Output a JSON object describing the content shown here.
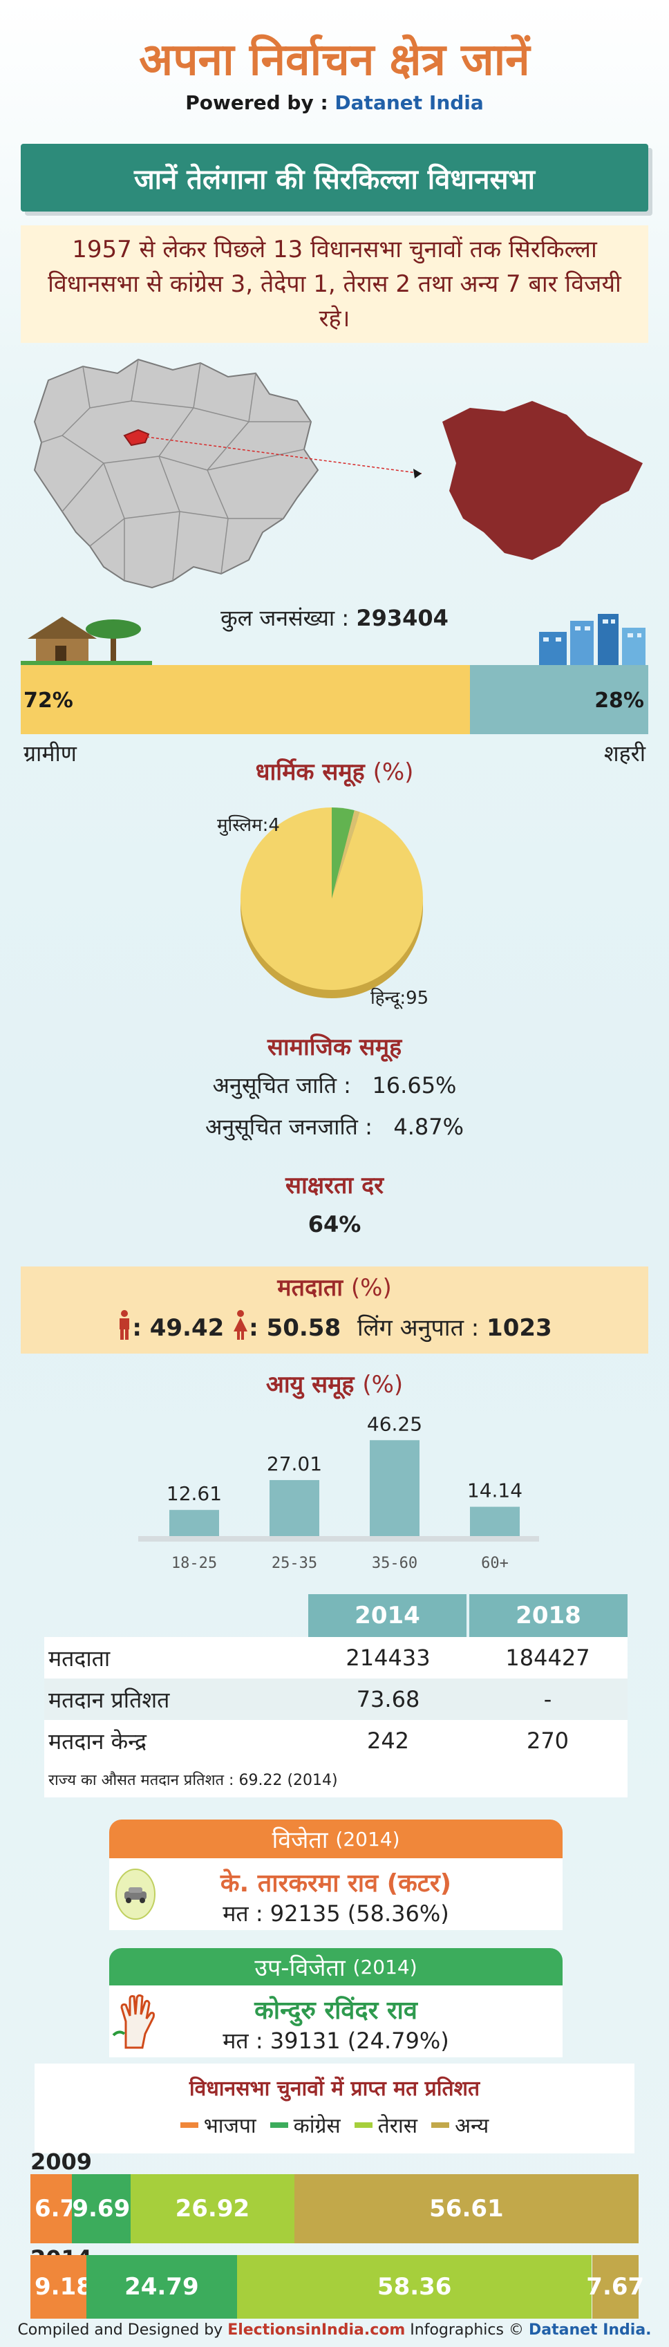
{
  "header": {
    "title": "अपना निर्वाचन क्षेत्र जानें",
    "powered_prefix": "Powered by : ",
    "powered_brand": "Datanet India"
  },
  "banner": {
    "text": "जानें तेलंगाना की सिरकिल्ला विधानसभा"
  },
  "intro": {
    "text": "1957 से लेकर पिछले 13 विधानसभा चुनावों तक सिरकिल्ला विधानसभा से कांग्रेस 3, तेदेपा 1, तेरास 2 तथा अन्य 7 बार विजयी रहे।"
  },
  "population": {
    "label": "कुल जनसंख्या : ",
    "value": "293404",
    "rural_pct": "72%",
    "urban_pct": "28%",
    "rural_label": "ग्रामीण",
    "urban_label": "शहरी"
  },
  "religion": {
    "title": "धार्मिक समूह",
    "unit": "(%)",
    "muslim_label": "मुस्लिम:4",
    "hindu_label": "हिन्दू:95",
    "chart_data": {
      "type": "pie",
      "categories": [
        "हिन्दू",
        "मुस्लिम",
        "अन्य"
      ],
      "values": [
        95,
        4,
        1
      ]
    }
  },
  "social": {
    "title": "सामाजिक समूह",
    "sc_label": "अनुसूचित जाति :",
    "sc_value": "16.65%",
    "st_label": "अनुसूचित जनजाति :",
    "st_value": "4.87%"
  },
  "literacy": {
    "title": "साक्षरता दर",
    "value": "64%"
  },
  "voters": {
    "title": "मतदाता",
    "unit": "(%)",
    "male": ": 49.42",
    "female": ": 50.58",
    "ratio_label": "लिंग अनुपात : ",
    "ratio_value": "1023"
  },
  "age": {
    "title": "आयु समूह",
    "unit": "(%)",
    "chart_data": {
      "type": "bar",
      "categories": [
        "18-25",
        "25-35",
        "35-60",
        "60+"
      ],
      "values": [
        12.61,
        27.01,
        46.25,
        14.14
      ],
      "ylim": [
        0,
        50
      ]
    }
  },
  "table": {
    "headers": [
      "2014",
      "2018"
    ],
    "rows": [
      {
        "label": "मतदाता",
        "v2014": "214433",
        "v2018": "184427"
      },
      {
        "label": "मतदान प्रतिशत",
        "v2014": "73.68",
        "v2018": "-"
      },
      {
        "label": "मतदान केन्द्र",
        "v2014": "242",
        "v2018": "270"
      }
    ],
    "note": "राज्य का औसत मतदान प्रतिशत : 69.22 (2014)"
  },
  "winner": {
    "title": "विजेता",
    "year": "(2014)",
    "name": "के. तारकरमा राव (कटर)",
    "votes": "मत : 92135 (58.36%)",
    "color": "#f0873a"
  },
  "runner": {
    "title": "उप-विजेता",
    "year": "(2014)",
    "name": "कोन्दुरु रविंदर राव",
    "votes": "मत : 39131 (24.79%)",
    "color": "#3cac5c"
  },
  "results": {
    "title": "विधानसभा चुनावों में प्राप्त मत प्रतिशत",
    "legend": [
      {
        "name": "भाजपा",
        "color": "#f0873a"
      },
      {
        "name": "कांग्रेस",
        "color": "#3cac5c"
      },
      {
        "name": "तेरास",
        "color": "#a6cf3c"
      },
      {
        "name": "अन्य",
        "color": "#c2a84a"
      }
    ],
    "chart_data": {
      "type": "bar",
      "categories": [
        "2009",
        "2014"
      ],
      "series": [
        {
          "name": "भाजपा",
          "values": [
            6.78,
            9.18
          ]
        },
        {
          "name": "कांग्रेस",
          "values": [
            9.69,
            24.79
          ]
        },
        {
          "name": "तेरास",
          "values": [
            26.92,
            58.36
          ]
        },
        {
          "name": "अन्य",
          "values": [
            56.61,
            7.67
          ]
        }
      ]
    }
  },
  "footer": {
    "prefix": "Compiled and Designed by ",
    "brand1": "ElectionsinIndia.com",
    "middle": " Infographics © ",
    "brand2": "Datanet India."
  }
}
